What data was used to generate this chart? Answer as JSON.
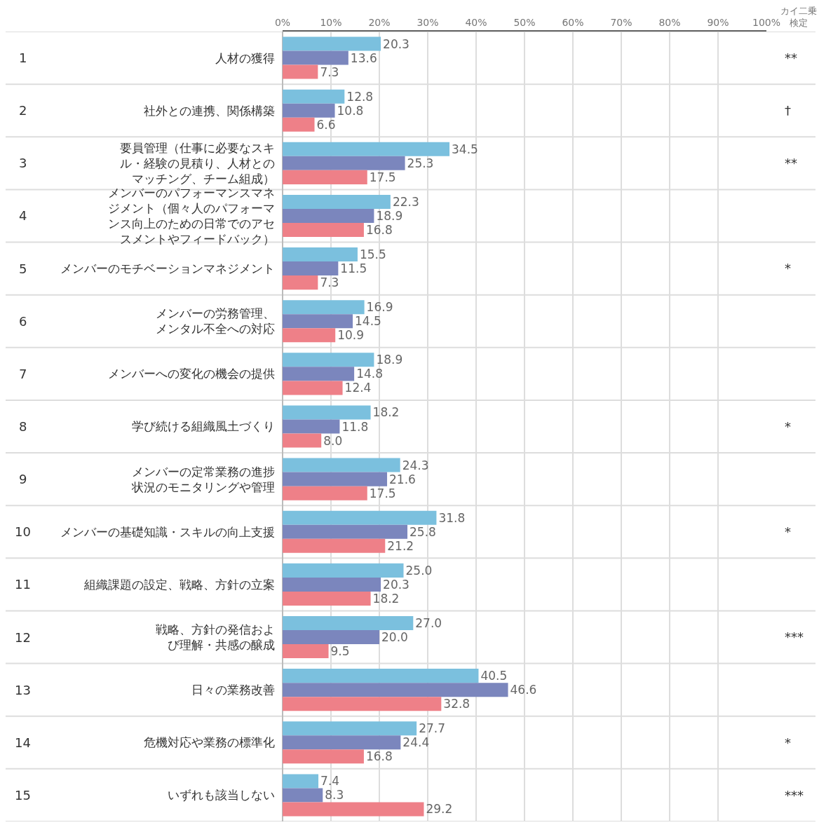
{
  "chart_data": {
    "type": "bar",
    "orientation": "horizontal",
    "categories": [
      "人材の獲得",
      "社外との連携、関係構築",
      "要員管理（仕事に必要なスキル・経験の見積り、人材とのマッチング、チーム組成）",
      "メンバーのパフォーマンスマネジメント（個々人のパフォーマンス向上のための日常でのアセスメントやフィードバック）",
      "メンバーのモチベーションマネジメント",
      "メンバーの労務管理、メンタル不全への対応",
      "メンバーへの変化の機会の提供",
      "学び続ける組織風土づくり",
      "メンバーの定常業務の進捗状況のモニタリングや管理",
      "メンバーの基礎知識・スキルの向上支援",
      "組織課題の設定、戦略、方針の立案",
      "戦略、方針の発信および理解・共感の醸成",
      "日々の業務改善",
      "危機対応や業務の標準化",
      "いずれも該当しない"
    ],
    "y2_categories": [
      "**",
      "†",
      "**",
      null,
      "*",
      null,
      null,
      "*",
      null,
      "*",
      null,
      "***",
      null,
      "*",
      "***"
    ],
    "y2label": "カイ二乗検定",
    "series": [
      {
        "color": "#7bc0de",
        "values": [
          20.3,
          12.8,
          34.5,
          22.3,
          15.5,
          16.9,
          18.9,
          18.2,
          24.3,
          31.8,
          25.0,
          27.0,
          40.5,
          27.7,
          7.4
        ],
        "value_labels": [
          "20.3",
          "12.8",
          "34.5",
          "22.3",
          "15.5",
          "16.9",
          "18.9",
          "18.2",
          "24.3",
          "31.8",
          "25.0",
          "27.0",
          "40.5",
          "27.7",
          "7.4"
        ]
      },
      {
        "color": "#7b86bd",
        "values": [
          13.6,
          10.8,
          25.3,
          18.9,
          11.5,
          14.5,
          14.8,
          11.8,
          21.6,
          25.8,
          20.3,
          20.0,
          46.6,
          24.4,
          8.3
        ],
        "value_labels": [
          "13.6",
          "10.8",
          "25.3",
          "18.9",
          "11.5",
          "14.5",
          "14.8",
          "11.8",
          "21.6",
          "25.8",
          "20.3",
          "20.0",
          "46.6",
          "24.4",
          "8.3"
        ]
      },
      {
        "color": "#ee8088",
        "values": [
          7.3,
          6.6,
          17.5,
          16.8,
          7.3,
          10.9,
          12.4,
          8.0,
          17.5,
          21.2,
          18.2,
          9.5,
          32.8,
          16.8,
          29.2
        ],
        "value_labels": [
          "7.3",
          "6.6",
          "17.5",
          "16.8",
          "7.3",
          "10.9",
          "12.4",
          "8.0",
          "17.5",
          "21.2",
          "18.2",
          "9.5",
          "32.8",
          "16.8",
          "29.2"
        ]
      }
    ],
    "xlim": [
      0,
      100
    ],
    "xticks": [
      {
        "value": 0,
        "label": "0%"
      },
      {
        "value": 10,
        "label": "10%"
      },
      {
        "value": 20,
        "label": "20%"
      },
      {
        "value": 30,
        "label": "30%"
      },
      {
        "value": 40,
        "label": "40%"
      },
      {
        "value": 50,
        "label": "50%"
      },
      {
        "value": 60,
        "label": "60%"
      },
      {
        "value": 70,
        "label": "70%"
      },
      {
        "value": 80,
        "label": "80%"
      },
      {
        "value": 90,
        "label": "90%"
      },
      {
        "value": 100,
        "label": "100%"
      }
    ],
    "grid": "x",
    "annotations": [
      "1",
      "2",
      "3",
      "4",
      "5",
      "6",
      "7",
      "8",
      "9",
      "10",
      "11",
      "12",
      "13",
      "14",
      "15"
    ]
  }
}
